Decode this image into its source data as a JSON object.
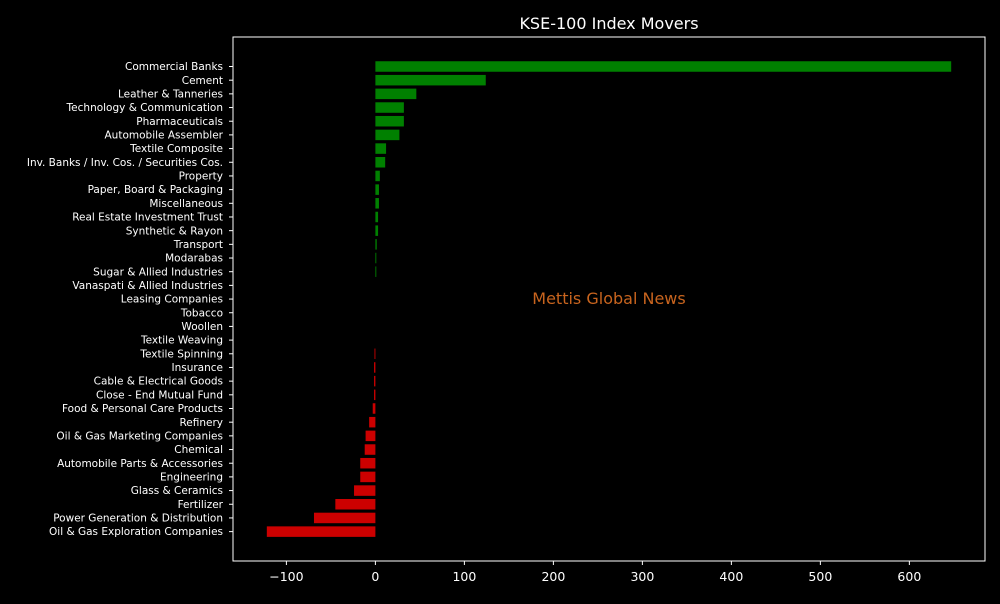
{
  "chart_data": {
    "type": "bar",
    "orientation": "horizontal",
    "title": "KSE-100 Index Movers",
    "xlabel": "",
    "ylabel": "",
    "watermark": "Mettis Global News",
    "xlim": [
      -160,
      685
    ],
    "xticks": [
      -100,
      0,
      100,
      200,
      300,
      400,
      500,
      600
    ],
    "xtick_labels": [
      "−100",
      "0",
      "100",
      "200",
      "300",
      "400",
      "500",
      "600"
    ],
    "grid": false,
    "colors": {
      "background": "#000000",
      "text": "#ffffff",
      "positive": "#008000",
      "negative": "#cc0000",
      "watermark": "#c8641e"
    },
    "categories": [
      "Commercial Banks",
      "Cement",
      "Leather & Tanneries",
      "Technology & Communication",
      "Pharmaceuticals",
      "Automobile Assembler",
      "Textile Composite",
      "Inv. Banks / Inv. Cos. / Securities Cos.",
      "Property",
      "Paper, Board & Packaging",
      "Miscellaneous",
      "Real Estate Investment Trust",
      "Synthetic & Rayon",
      "Transport",
      "Modarabas",
      "Sugar & Allied Industries",
      "Vanaspati & Allied Industries",
      "Leasing Companies",
      "Tobacco",
      "Woollen",
      "Textile Weaving",
      "Textile Spinning",
      "Insurance",
      "Cable & Electrical Goods",
      "Close - End Mutual Fund",
      "Food & Personal Care Products",
      "Refinery",
      "Oil & Gas Marketing Companies",
      "Chemical",
      "Automobile Parts & Accessories",
      "Engineering",
      "Glass & Ceramics",
      "Fertilizer",
      "Power Generation & Distribution",
      "Oil & Gas Exploration Companies"
    ],
    "values": [
      647,
      124,
      46,
      32,
      32,
      27,
      12,
      11,
      5,
      4,
      4,
      3,
      3,
      1.5,
      1,
      1,
      0,
      0,
      0,
      0,
      0,
      -1,
      -1.5,
      -1.5,
      -1.5,
      -3,
      -7,
      -11,
      -12,
      -17,
      -17,
      -24,
      -45,
      -69,
      -122
    ]
  }
}
